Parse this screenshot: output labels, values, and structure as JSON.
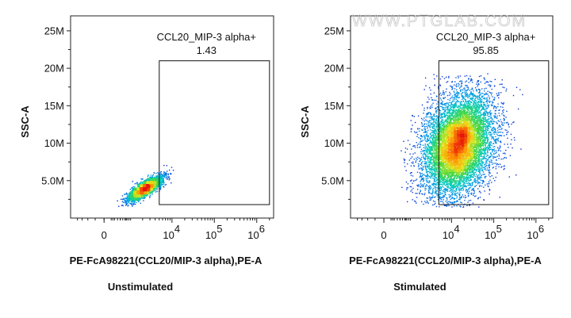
{
  "watermark": "WWW.PTGLAB.COM",
  "chart_data": [
    {
      "type": "scatter",
      "plot_style": "pseudocolor density dot plot",
      "caption": "Unstimulated",
      "xlabel": "PE-FcA98221(CCL20/MIP-3 alpha),PE-A",
      "ylabel": "SSC-A",
      "x_scale": "biexponential",
      "y_scale": "linear",
      "xlim": [
        -1500,
        2500000
      ],
      "ylim": [
        0,
        27000000
      ],
      "x_ticks": [
        {
          "value": 0,
          "base": "0",
          "exp": ""
        },
        {
          "value": 10000,
          "base": "10",
          "exp": "4"
        },
        {
          "value": 100000,
          "base": "10",
          "exp": "5"
        },
        {
          "value": 1000000,
          "base": "10",
          "exp": "6"
        }
      ],
      "y_ticks": [
        {
          "value": 5000000,
          "label": "5.0M"
        },
        {
          "value": 10000000,
          "label": "10M"
        },
        {
          "value": 15000000,
          "label": "15M"
        },
        {
          "value": 20000000,
          "label": "20M"
        },
        {
          "value": 25000000,
          "label": "25M"
        }
      ],
      "gate": {
        "name": "CCL20_MIP-3 alpha+",
        "percent": "1.43",
        "x_range": [
          5000,
          2000000
        ],
        "y_range": [
          1800000,
          21000000
        ]
      },
      "population": {
        "center_x": 2200,
        "center_y": 4000000,
        "x_spread_log": 0.22,
        "y_spread": 900000,
        "events": 2600
      }
    },
    {
      "type": "scatter",
      "plot_style": "pseudocolor density dot plot",
      "caption": "Stimulated",
      "xlabel": "PE-FcA98221(CCL20/MIP-3 alpha),PE-A",
      "ylabel": "SSC-A",
      "x_scale": "biexponential",
      "y_scale": "linear",
      "xlim": [
        -1500,
        2500000
      ],
      "ylim": [
        0,
        27000000
      ],
      "x_ticks": [
        {
          "value": 0,
          "base": "0",
          "exp": ""
        },
        {
          "value": 10000,
          "base": "10",
          "exp": "4"
        },
        {
          "value": 100000,
          "base": "10",
          "exp": "5"
        },
        {
          "value": 1000000,
          "base": "10",
          "exp": "6"
        }
      ],
      "y_ticks": [
        {
          "value": 5000000,
          "label": "5.0M"
        },
        {
          "value": 10000000,
          "label": "10M"
        },
        {
          "value": 15000000,
          "label": "15M"
        },
        {
          "value": 20000000,
          "label": "20M"
        },
        {
          "value": 25000000,
          "label": "25M"
        }
      ],
      "gate": {
        "name": "CCL20_MIP-3 alpha+",
        "percent": "95.85",
        "x_range": [
          5000,
          2000000
        ],
        "y_range": [
          1800000,
          21000000
        ]
      },
      "population": {
        "center_x": 14000,
        "center_y": 9500000,
        "x_spread_log": 0.42,
        "y_spread": 3600000,
        "events": 9000
      }
    }
  ]
}
